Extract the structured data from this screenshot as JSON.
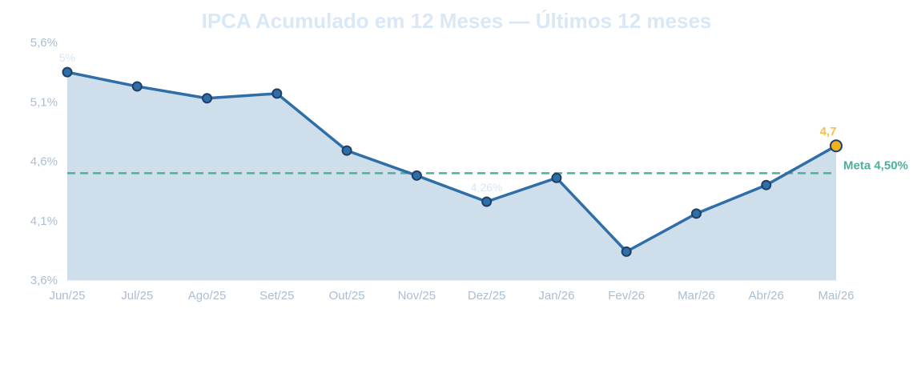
{
  "chart_data": {
    "type": "line",
    "title": "IPCA Acumulado em 12 Meses — Últimos 12 meses",
    "categories": [
      "Jun/25",
      "Jul/25",
      "Ago/25",
      "Set/25",
      "Out/25",
      "Nov/25",
      "Dez/25",
      "Jan/26",
      "Fev/26",
      "Mar/26",
      "Abr/26",
      "Mai/26"
    ],
    "series": [
      {
        "values": [
          5.35,
          5.23,
          5.13,
          5.17,
          4.69,
          4.48,
          4.26,
          4.46,
          3.84,
          4.16,
          4.4,
          4.73
        ]
      }
    ],
    "ylim": [
      3.6,
      5.6
    ],
    "yticks": [
      "3,6%",
      "4,1%",
      "4,6%",
      "5,1%",
      "5,6%"
    ],
    "reference_line": {
      "label": "Meta 4,50%",
      "value": 4.5
    },
    "data_labels": [
      {
        "index": 0,
        "text": "5%"
      },
      {
        "index": 6,
        "text": "4,26%"
      },
      {
        "index": 11,
        "text": "4,7"
      }
    ],
    "colors": {
      "line": "#2f6ea7",
      "fill": "#cfdeeb",
      "marker": "#2f6ea7",
      "marker_stroke": "#1f3f67",
      "highlight_marker": "#f2b21d",
      "meta": "#4fae9c",
      "axis": "#dce8f3",
      "title": "#d9e8f6",
      "ticks": "#a9bdd3"
    },
    "grid": false,
    "legend": "none"
  }
}
